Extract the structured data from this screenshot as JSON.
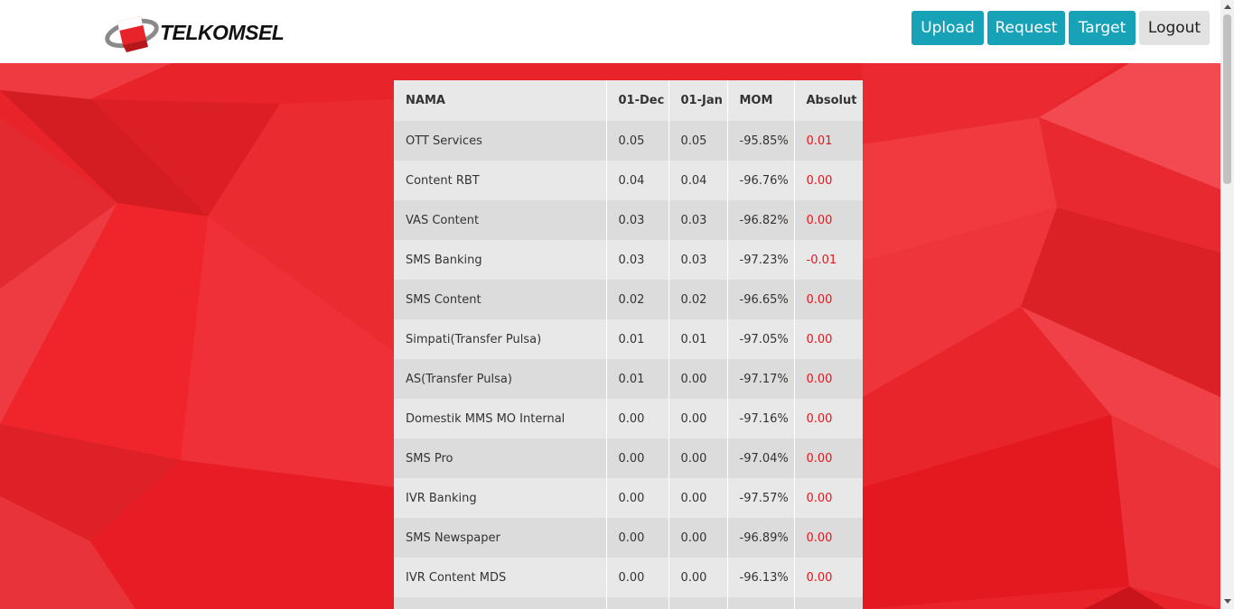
{
  "header": {
    "brand": "TELKOMSEL",
    "nav": [
      {
        "label": "Upload"
      },
      {
        "label": "Request"
      },
      {
        "label": "Target"
      },
      {
        "label": "Logout"
      }
    ]
  },
  "colors": {
    "accent": "#17a2b8",
    "brand_red": "#e8232a",
    "negative": "#e8141c"
  },
  "table": {
    "headers": [
      "NAMA",
      "01-Dec",
      "01-Jan",
      "MOM",
      "Absolut"
    ],
    "rows": [
      [
        "OTT Services",
        "0.05",
        "0.05",
        "-95.85%",
        "0.01"
      ],
      [
        "Content RBT",
        "0.04",
        "0.04",
        "-96.76%",
        "0.00"
      ],
      [
        "VAS Content",
        "0.03",
        "0.03",
        "-96.82%",
        "0.00"
      ],
      [
        "SMS Banking",
        "0.03",
        "0.03",
        "-97.23%",
        "-0.01"
      ],
      [
        "SMS Content",
        "0.02",
        "0.02",
        "-96.65%",
        "0.00"
      ],
      [
        "Simpati(Transfer Pulsa)",
        "0.01",
        "0.01",
        "-97.05%",
        "0.00"
      ],
      [
        "AS(Transfer Pulsa)",
        "0.01",
        "0.00",
        "-97.17%",
        "0.00"
      ],
      [
        "Domestik MMS MO Internal",
        "0.00",
        "0.00",
        "-97.16%",
        "0.00"
      ],
      [
        "SMS Pro",
        "0.00",
        "0.00",
        "-97.04%",
        "0.00"
      ],
      [
        "IVR Banking",
        "0.00",
        "0.00",
        "-97.57%",
        "0.00"
      ],
      [
        "SMS Newspaper",
        "0.00",
        "0.00",
        "-96.89%",
        "0.00"
      ],
      [
        "IVR Content MDS",
        "0.00",
        "0.00",
        "-96.13%",
        "0.00"
      ],
      [
        "",
        "",
        "",
        "",
        ""
      ]
    ]
  }
}
